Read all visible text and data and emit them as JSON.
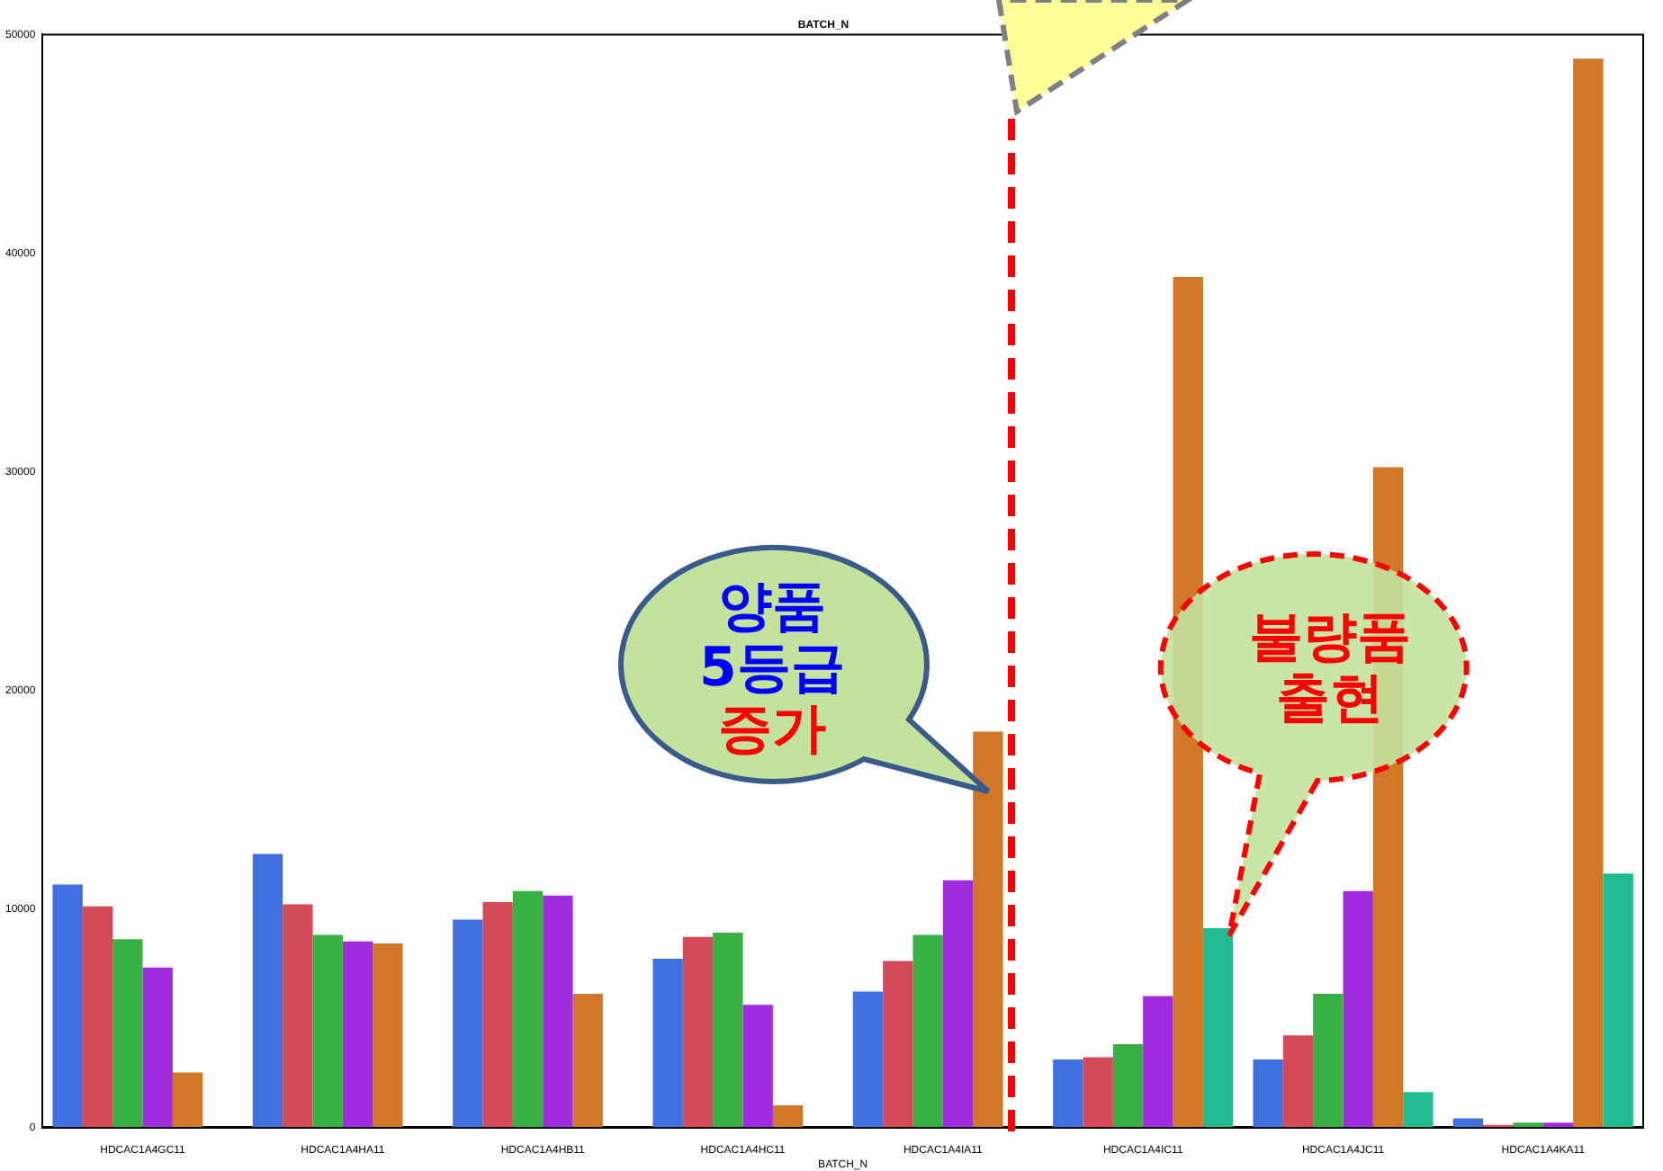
{
  "chart_data": {
    "type": "bar",
    "title": "BATCH_N",
    "xlabel": "BATCH_N",
    "categories": [
      "HDCAC1A4GC11",
      "HDCAC1A4HA11",
      "HDCAC1A4HB11",
      "HDCAC1A4HC11",
      "HDCAC1A4IA11",
      "HDCAC1A4IC11",
      "HDCAC1A4JC11",
      "HDCAC1A4KA11"
    ],
    "series": [
      {
        "color": "#4070e0",
        "values": [
          11100,
          12500,
          9500,
          7700,
          6200,
          3100,
          3100,
          400
        ]
      },
      {
        "color": "#d44a58",
        "values": [
          10100,
          10200,
          10300,
          8700,
          7600,
          3200,
          4200,
          100
        ]
      },
      {
        "color": "#38b044",
        "values": [
          8600,
          8800,
          10800,
          8900,
          8800,
          3800,
          6100,
          200
        ]
      },
      {
        "color": "#a02ce0",
        "values": [
          7300,
          8500,
          10600,
          5600,
          11300,
          6000,
          10800,
          200
        ]
      },
      {
        "color": "#d07828",
        "values": [
          2500,
          8400,
          6100,
          1000,
          18100,
          38900,
          30200,
          48900
        ]
      },
      {
        "color": "#20bc90",
        "values": [
          null,
          null,
          null,
          null,
          null,
          9100,
          1600,
          11600
        ]
      }
    ],
    "ylim": [
      0,
      50000
    ],
    "yticks": [
      0,
      10000,
      20000,
      30000,
      40000,
      50000
    ],
    "grid": false,
    "annotations": [
      "양품\n5등급\n증가",
      "불량품\n출현"
    ]
  }
}
